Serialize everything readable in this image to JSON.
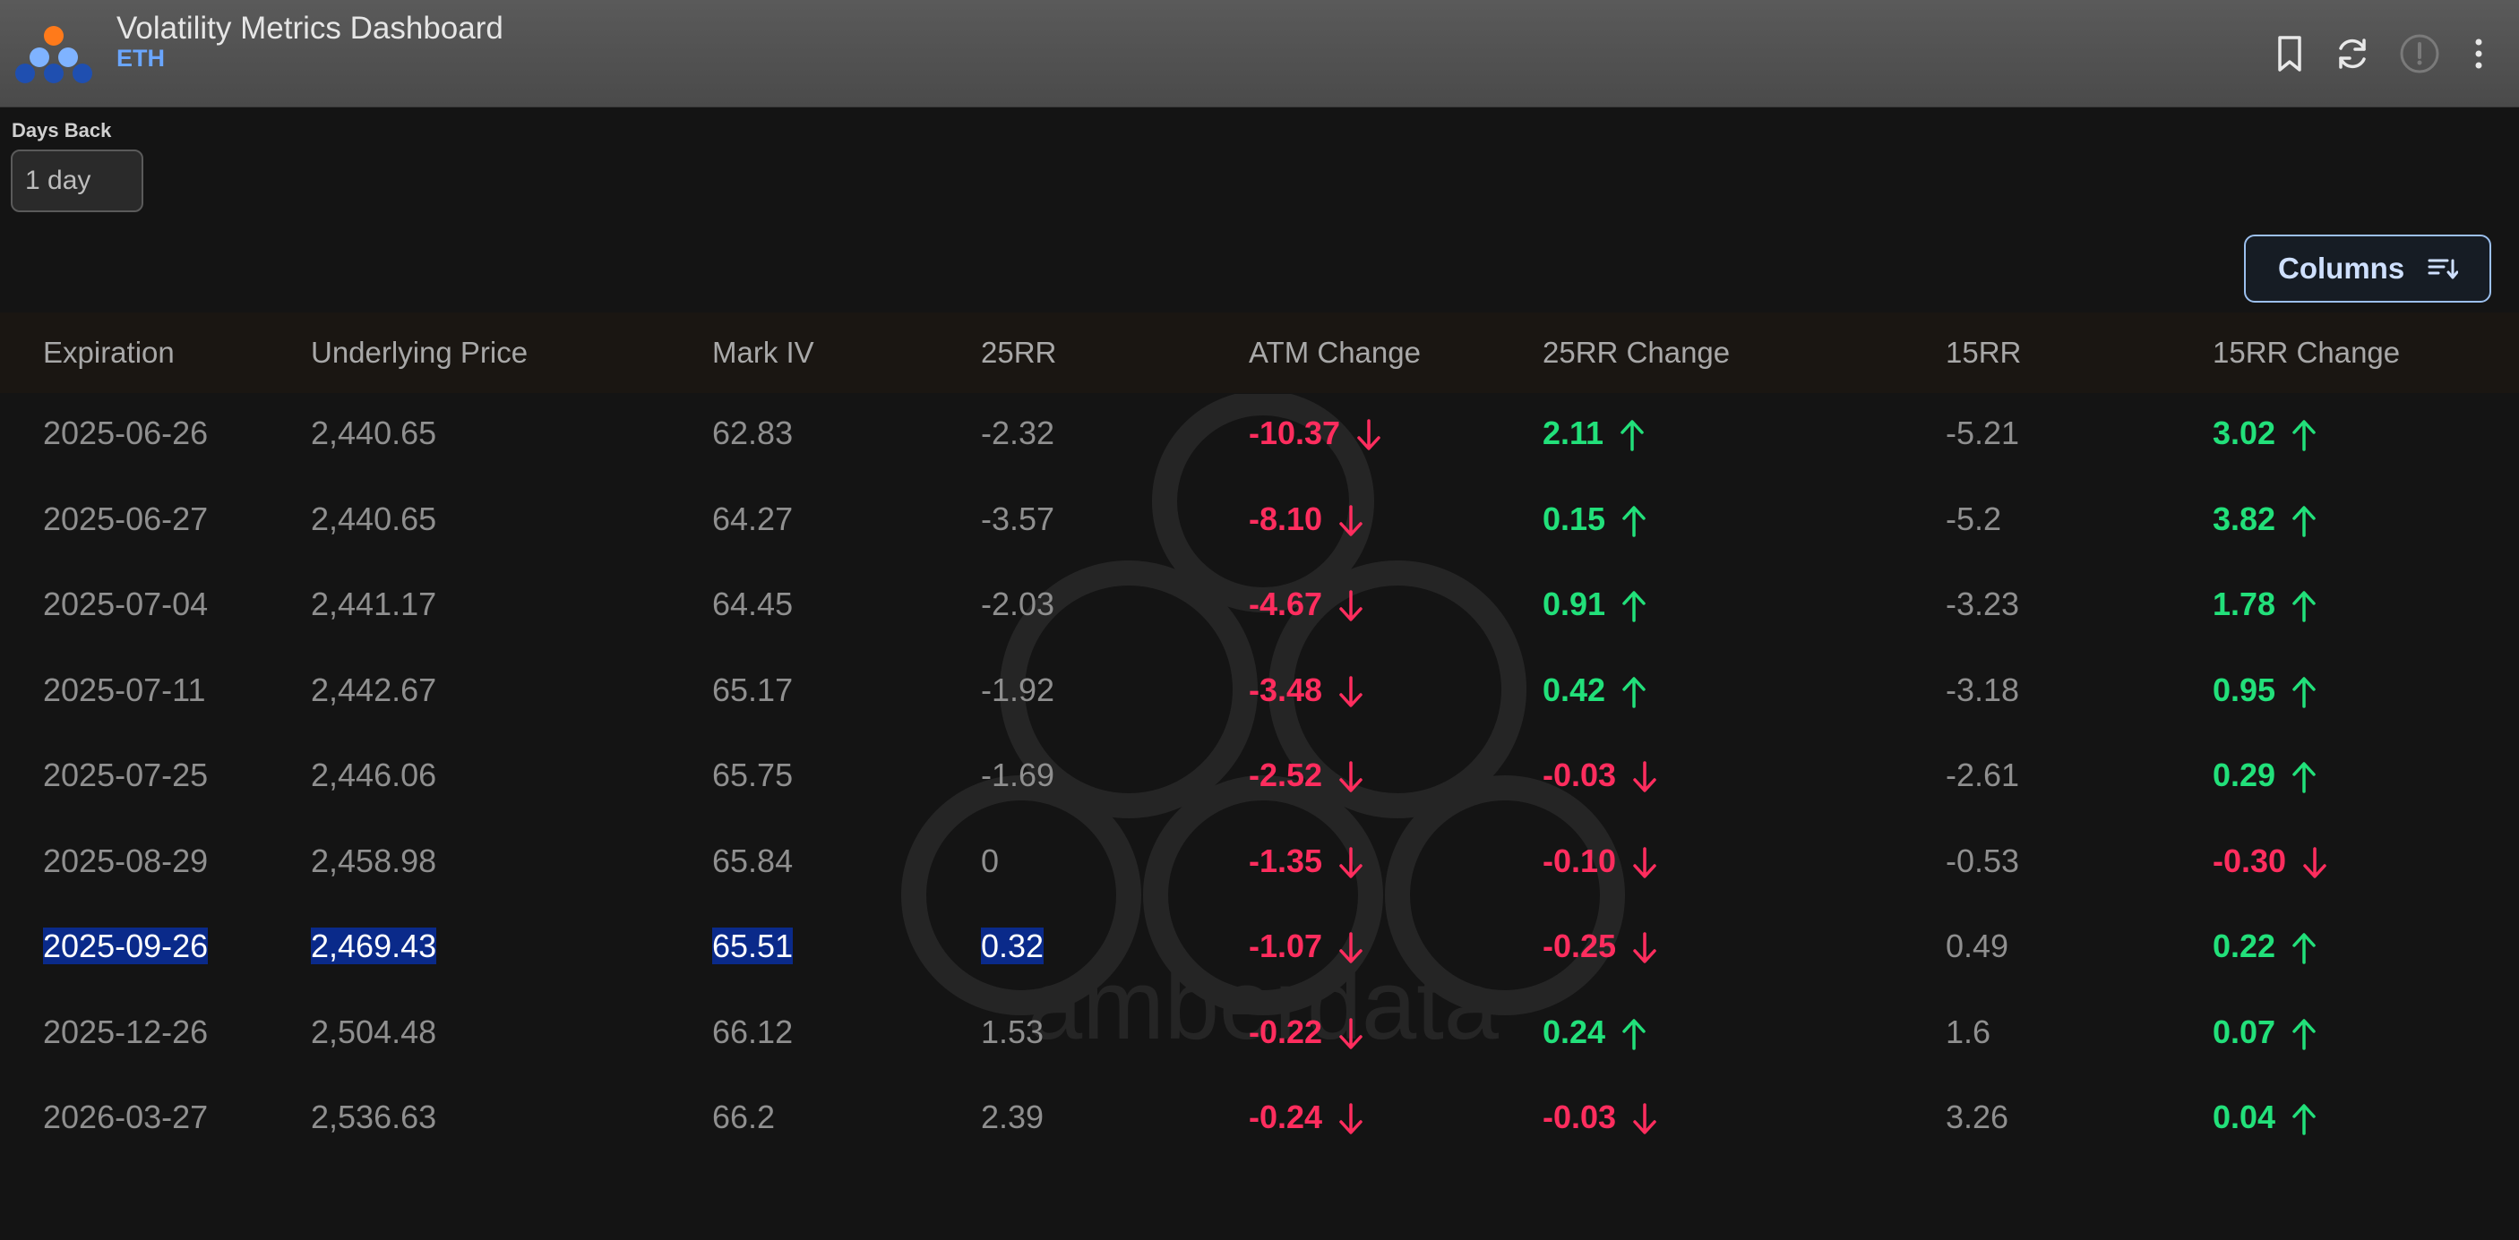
{
  "header": {
    "title": "Volatility Metrics Dashboard",
    "subtitle": "ETH"
  },
  "filters": {
    "days_back_label": "Days Back",
    "days_back_value": "1 day"
  },
  "toolbar": {
    "columns_label": "Columns"
  },
  "watermark_text": "amberdata",
  "table": {
    "columns": [
      "Expiration",
      "Underlying Price",
      "Mark IV",
      "25RR",
      "ATM Change",
      "25RR Change",
      "15RR",
      "15RR Change"
    ],
    "rows": [
      {
        "expiration": "2025-06-26",
        "price": "2,440.65",
        "mark_iv": "62.83",
        "rr25": "-2.32",
        "atm_change": "-10.37",
        "atm_dir": "down",
        "rr25_change": "2.11",
        "rr25_dir": "up",
        "rr15": "-5.21",
        "rr15_change": "3.02",
        "rr15_dir": "up"
      },
      {
        "expiration": "2025-06-27",
        "price": "2,440.65",
        "mark_iv": "64.27",
        "rr25": "-3.57",
        "atm_change": "-8.10",
        "atm_dir": "down",
        "rr25_change": "0.15",
        "rr25_dir": "up",
        "rr15": "-5.2",
        "rr15_change": "3.82",
        "rr15_dir": "up"
      },
      {
        "expiration": "2025-07-04",
        "price": "2,441.17",
        "mark_iv": "64.45",
        "rr25": "-2.03",
        "atm_change": "-4.67",
        "atm_dir": "down",
        "rr25_change": "0.91",
        "rr25_dir": "up",
        "rr15": "-3.23",
        "rr15_change": "1.78",
        "rr15_dir": "up"
      },
      {
        "expiration": "2025-07-11",
        "price": "2,442.67",
        "mark_iv": "65.17",
        "rr25": "-1.92",
        "atm_change": "-3.48",
        "atm_dir": "down",
        "rr25_change": "0.42",
        "rr25_dir": "up",
        "rr15": "-3.18",
        "rr15_change": "0.95",
        "rr15_dir": "up"
      },
      {
        "expiration": "2025-07-25",
        "price": "2,446.06",
        "mark_iv": "65.75",
        "rr25": "-1.69",
        "atm_change": "-2.52",
        "atm_dir": "down",
        "rr25_change": "-0.03",
        "rr25_dir": "down",
        "rr15": "-2.61",
        "rr15_change": "0.29",
        "rr15_dir": "up"
      },
      {
        "expiration": "2025-08-29",
        "price": "2,458.98",
        "mark_iv": "65.84",
        "rr25": "0",
        "atm_change": "-1.35",
        "atm_dir": "down",
        "rr25_change": "-0.10",
        "rr25_dir": "down",
        "rr15": "-0.53",
        "rr15_change": "-0.30",
        "rr15_dir": "down"
      },
      {
        "expiration": "2025-09-26",
        "price": "2,469.43",
        "mark_iv": "65.51",
        "rr25": "0.32",
        "atm_change": "-1.07",
        "atm_dir": "down",
        "rr25_change": "-0.25",
        "rr25_dir": "down",
        "rr15": "0.49",
        "rr15_change": "0.22",
        "rr15_dir": "up",
        "selected": true
      },
      {
        "expiration": "2025-12-26",
        "price": "2,504.48",
        "mark_iv": "66.12",
        "rr25": "1.53",
        "atm_change": "-0.22",
        "atm_dir": "down",
        "rr25_change": "0.24",
        "rr25_dir": "up",
        "rr15": "1.6",
        "rr15_change": "0.07",
        "rr15_dir": "up"
      },
      {
        "expiration": "2026-03-27",
        "price": "2,536.63",
        "mark_iv": "66.2",
        "rr25": "2.39",
        "atm_change": "-0.24",
        "atm_dir": "down",
        "rr25_change": "-0.03",
        "rr25_dir": "down",
        "rr15": "3.26",
        "rr15_change": "0.04",
        "rr15_dir": "up"
      }
    ]
  },
  "colors": {
    "negative": "#ff2d5e",
    "positive": "#22e07a",
    "accent": "#6aa6ff",
    "selection": "#0a2a8a"
  }
}
